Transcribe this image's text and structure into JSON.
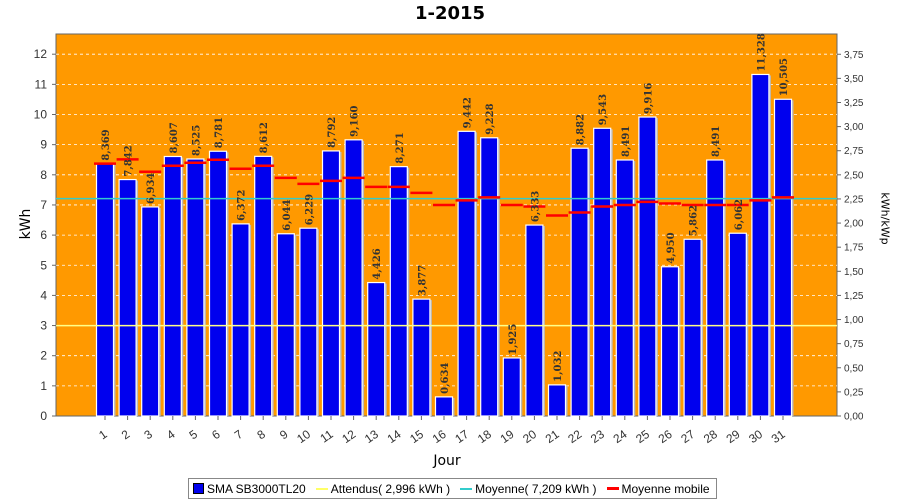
{
  "chart_data": {
    "type": "bar",
    "title": "1-2015",
    "xlabel": "Jour",
    "ylabel": "kWh",
    "ylabel_right": "kWh/kWp",
    "ylim": [
      0,
      12.67
    ],
    "y_ticks": [
      "0",
      "1",
      "2",
      "3",
      "4",
      "5",
      "6",
      "7",
      "8",
      "9",
      "10",
      "11",
      "12"
    ],
    "y2lim": [
      0,
      3.96
    ],
    "y2_ticks": [
      "0,00",
      "0,25",
      "0,50",
      "0,75",
      "1,00",
      "1,25",
      "1,50",
      "1,75",
      "2,00",
      "2,25",
      "2,50",
      "2,75",
      "3,00",
      "3,25",
      "3,50",
      "3,75"
    ],
    "categories": [
      "1",
      "2",
      "3",
      "4",
      "5",
      "6",
      "7",
      "8",
      "9",
      "10",
      "11",
      "12",
      "13",
      "14",
      "15",
      "16",
      "17",
      "18",
      "19",
      "20",
      "21",
      "22",
      "23",
      "24",
      "25",
      "26",
      "27",
      "28",
      "29",
      "30",
      "31"
    ],
    "series": [
      {
        "name": "SMA SB3000TL20",
        "type": "bar",
        "color": "#0000ee",
        "values": [
          8.369,
          7.842,
          6.934,
          8.607,
          8.525,
          8.781,
          6.372,
          8.612,
          6.044,
          6.229,
          8.792,
          9.16,
          4.426,
          8.271,
          3.877,
          0.634,
          9.442,
          9.228,
          1.925,
          6.333,
          1.032,
          8.882,
          9.543,
          8.491,
          9.916,
          4.95,
          5.862,
          8.491,
          6.062,
          11.328,
          10.505
        ],
        "labels": [
          "8,369",
          "7,842",
          "6,934",
          "8,607",
          "8,525",
          "8,781",
          "6,372",
          "8,612",
          "6,044",
          "6,229",
          "8,792",
          "9,160",
          "4,426",
          "8,271",
          "3,877",
          "0,634",
          "9,442",
          "9,228",
          "1,925",
          "6,333",
          "1,032",
          "8,882",
          "9,543",
          "8,491",
          "9,916",
          "4,950",
          "5,862",
          "8,491",
          "6,062",
          "11,328",
          "10,505"
        ]
      },
      {
        "name": "Attendus( 2,996 kWh )",
        "type": "hline",
        "color": "#ffff99",
        "value": 2.996
      },
      {
        "name": "Moyenne( 7,209 kWh )",
        "type": "hline",
        "color": "#33cccc",
        "value": 7.209
      },
      {
        "name": "Moyenne mobile",
        "type": "step",
        "color": "#ff0000",
        "values": [
          8.37,
          8.51,
          8.1,
          8.3,
          8.4,
          8.5,
          8.2,
          8.3,
          7.9,
          7.7,
          7.8,
          7.9,
          7.6,
          7.6,
          7.4,
          7.0,
          7.15,
          7.25,
          7.0,
          6.95,
          6.65,
          6.75,
          6.95,
          7.0,
          7.1,
          7.05,
          7.0,
          7.0,
          7.0,
          7.15,
          7.25
        ]
      }
    ],
    "grid": true,
    "legend": "bottom"
  },
  "colors": {
    "plot_bg": "#ff9900",
    "bar": "#0000ee",
    "grid": "#ffffff"
  }
}
